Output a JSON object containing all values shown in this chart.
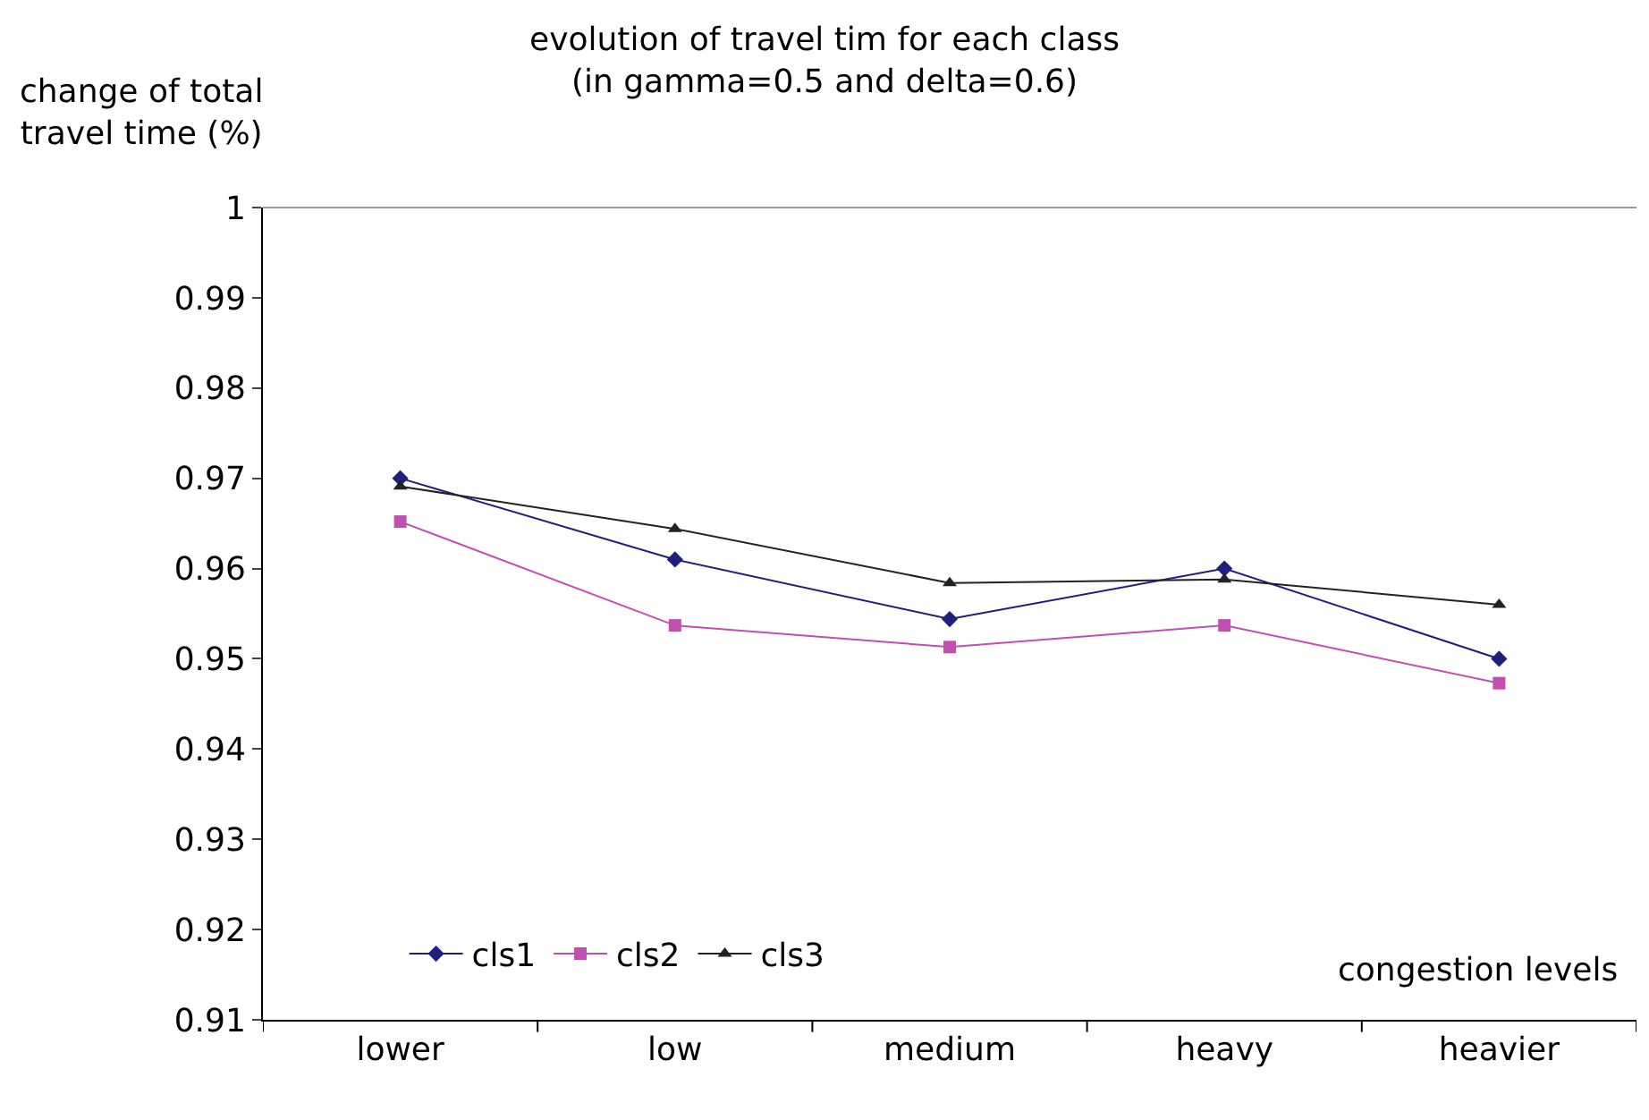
{
  "chart_data": {
    "type": "line",
    "title": "evolution of travel tim for each class\n(in gamma=0.5 and delta=0.6)",
    "ylabel": "change of total\ntravel time (%)",
    "xlabel": "congestion levels",
    "categories": [
      "lower",
      "low",
      "medium",
      "heavy",
      "heavier"
    ],
    "series": [
      {
        "name": "cls1",
        "color": "#1f1f7f",
        "marker": "diamond",
        "values": [
          0.97,
          0.961,
          0.9544,
          0.96,
          0.95
        ]
      },
      {
        "name": "cls2",
        "color": "#c04fb0",
        "marker": "square",
        "values": [
          0.9652,
          0.9537,
          0.9513,
          0.9537,
          0.9473
        ]
      },
      {
        "name": "cls3",
        "color": "#222222",
        "marker": "triangle",
        "values": [
          0.9691,
          0.9644,
          0.9584,
          0.9588,
          0.956
        ]
      }
    ],
    "ylim": [
      0.91,
      1
    ],
    "yticks": [
      0.91,
      0.92,
      0.93,
      0.94,
      0.95,
      0.96,
      0.97,
      0.98,
      0.99,
      1
    ],
    "legend": "bottom left",
    "line_style": "solid"
  }
}
